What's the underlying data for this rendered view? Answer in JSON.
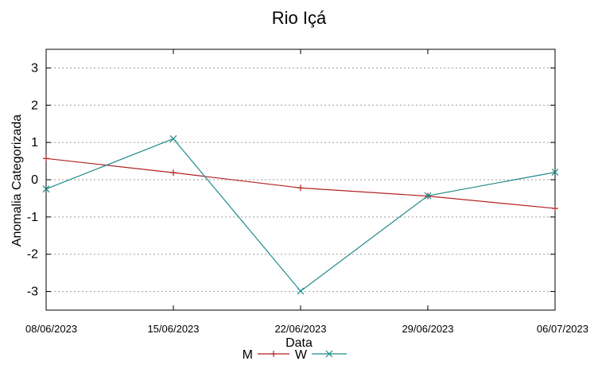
{
  "chart_data": {
    "type": "line",
    "title": "Rio Içá",
    "xlabel": "Data",
    "ylabel": "Anomalia Categorizada",
    "categories": [
      "08/06/2023",
      "15/06/2023",
      "22/06/2023",
      "29/06/2023",
      "06/07/2023"
    ],
    "ylim": [
      -3.5,
      3.5
    ],
    "yticks": [
      -3,
      -2,
      -1,
      0,
      1,
      2,
      3
    ],
    "grid": true,
    "legend": "bottom-center",
    "series": [
      {
        "name": "M",
        "color": "#b22222",
        "marker": "plus",
        "values": [
          0.57,
          0.19,
          -0.22,
          -0.44,
          -0.77
        ]
      },
      {
        "name": "W",
        "color": "#1e8a8a",
        "marker": "cross",
        "values": [
          -0.25,
          1.1,
          -2.99,
          -0.43,
          0.2
        ]
      }
    ]
  }
}
